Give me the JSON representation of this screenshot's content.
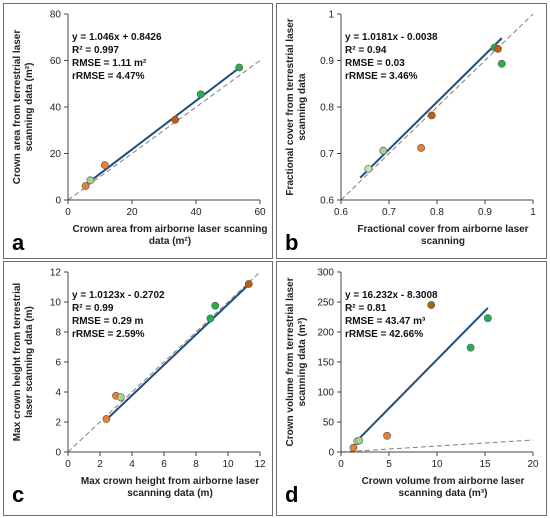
{
  "chart_data": [
    {
      "type": "scatter",
      "panel_letter": "a",
      "xlabel_lines": [
        "Crown area from airborne laser scanning",
        "data (m²)"
      ],
      "ylabel_lines": [
        "Crown area from terrestrial laser",
        "scanning data (m²)"
      ],
      "xlim": [
        0,
        60
      ],
      "ylim": [
        0,
        80
      ],
      "xticks": [
        0,
        20,
        40,
        60
      ],
      "yticks": [
        0,
        20,
        40,
        60,
        80
      ],
      "xtick_labels": [
        "0",
        "20",
        "40",
        "60"
      ],
      "ytick_labels": [
        "0",
        "20",
        "40",
        "60",
        "80"
      ],
      "stats_lines": [
        "y = 1.046x + 0.8426",
        "R² = 0.997",
        "RMSE = 1.11 m²",
        "rRMSE = 4.47%"
      ],
      "points": [
        {
          "x": 5.5,
          "y": 6,
          "color": "#ed7d31"
        },
        {
          "x": 7,
          "y": 8.5,
          "color": "#a9d18e"
        },
        {
          "x": 11.5,
          "y": 15,
          "color": "#ed7d31"
        },
        {
          "x": 33.5,
          "y": 34.5,
          "color": "#c55a11"
        },
        {
          "x": 41.5,
          "y": 45.5,
          "color": "#22b14c"
        },
        {
          "x": 53.5,
          "y": 57,
          "color": "#22b14c"
        }
      ],
      "regression_x": [
        5.5,
        53.5
      ],
      "reference_line": "1:1 dashed",
      "grid": false
    },
    {
      "type": "scatter",
      "panel_letter": "b",
      "xlabel_lines": [
        "Fractional cover from airborne laser",
        "scanning"
      ],
      "ylabel_lines": [
        "Fractional cover from terrestrial laser",
        "scanning data"
      ],
      "xlim": [
        0.6,
        1
      ],
      "ylim": [
        0.6,
        1
      ],
      "xticks": [
        0.6,
        0.7,
        0.8,
        0.9,
        1
      ],
      "yticks": [
        0.6,
        0.7,
        0.8,
        0.9,
        1
      ],
      "xtick_labels": [
        "0.6",
        "0.7",
        "0.8",
        "0.9",
        "1"
      ],
      "ytick_labels": [
        "0.6",
        "0.7",
        "0.8",
        "0.9",
        "1"
      ],
      "stats_lines": [
        "y = 1.0181x - 0.0038",
        "R² = 0.94",
        "RMSE = 0.03",
        "rRMSE = 3.46%"
      ],
      "points": [
        {
          "x": 0.657,
          "y": 0.667,
          "color": "#c5e0b4"
        },
        {
          "x": 0.688,
          "y": 0.706,
          "color": "#a9d18e"
        },
        {
          "x": 0.767,
          "y": 0.712,
          "color": "#ed7d31"
        },
        {
          "x": 0.789,
          "y": 0.782,
          "color": "#c55a11"
        },
        {
          "x": 0.92,
          "y": 0.928,
          "color": "#22b14c"
        },
        {
          "x": 0.927,
          "y": 0.925,
          "color": "#c55a11"
        },
        {
          "x": 0.935,
          "y": 0.893,
          "color": "#22b14c"
        }
      ],
      "regression_x": [
        0.64,
        0.935
      ],
      "reference_line": "1:1 dashed",
      "grid": false
    },
    {
      "type": "scatter",
      "panel_letter": "c",
      "xlabel_lines": [
        "Max crown height from airborne laser",
        "scanning data (m)"
      ],
      "ylabel_lines": [
        "Max crown height  from terrestrial",
        "laser scanning data  (m)"
      ],
      "xlim": [
        0,
        12
      ],
      "ylim": [
        0,
        12
      ],
      "xticks": [
        0,
        2,
        4,
        6,
        8,
        10,
        12
      ],
      "yticks": [
        0,
        2,
        4,
        6,
        8,
        10,
        12
      ],
      "xtick_labels": [
        "0",
        "2",
        "4",
        "6",
        "8",
        "10",
        "12"
      ],
      "ytick_labels": [
        "0",
        "2",
        "4",
        "6",
        "8",
        "10",
        "12"
      ],
      "stats_lines": [
        "y = 1.0123x - 0.2702",
        "R² = 0.99",
        "RMSE = 0.29 m",
        "rRMSE = 2.59%"
      ],
      "points": [
        {
          "x": 2.4,
          "y": 2.2,
          "color": "#ed7d31"
        },
        {
          "x": 3.0,
          "y": 3.75,
          "color": "#ed7d31"
        },
        {
          "x": 3.3,
          "y": 3.65,
          "color": "#a9d18e"
        },
        {
          "x": 8.9,
          "y": 8.9,
          "color": "#22b14c"
        },
        {
          "x": 9.2,
          "y": 9.75,
          "color": "#22b14c"
        },
        {
          "x": 11.3,
          "y": 11.2,
          "color": "#c55a11"
        }
      ],
      "regression_x": [
        2.4,
        11.3
      ],
      "reference_line": "1:1 dashed",
      "grid": false
    },
    {
      "type": "scatter",
      "panel_letter": "d",
      "xlabel_lines": [
        "Crown volume from airborne laser",
        "scanning data (m³)"
      ],
      "ylabel_lines": [
        "Crown volume from terrestrial laser",
        "scanning data (m³)"
      ],
      "xlim": [
        0,
        20
      ],
      "ylim": [
        0,
        300
      ],
      "xticks": [
        0,
        5,
        10,
        15,
        20
      ],
      "yticks": [
        0,
        50,
        100,
        150,
        200,
        250,
        300
      ],
      "xtick_labels": [
        "0",
        "5",
        "10",
        "15",
        "20"
      ],
      "ytick_labels": [
        "0",
        "50",
        "100",
        "150",
        "200",
        "250",
        "300"
      ],
      "stats_lines": [
        "y = 16.232x - 8.3008",
        "R² = 0.81",
        "RMSE = 43.47 m³",
        "rRMSE = 42.66%"
      ],
      "points": [
        {
          "x": 1.3,
          "y": 7,
          "color": "#ed7d31"
        },
        {
          "x": 1.7,
          "y": 18,
          "color": "#c5e0b4"
        },
        {
          "x": 1.9,
          "y": 19,
          "color": "#a9d18e"
        },
        {
          "x": 4.8,
          "y": 27,
          "color": "#ed7d31"
        },
        {
          "x": 9.4,
          "y": 245,
          "color": "#9e6b00"
        },
        {
          "x": 13.5,
          "y": 174,
          "color": "#22b14c"
        },
        {
          "x": 15.3,
          "y": 223,
          "color": "#22b14c"
        }
      ],
      "regression_x": [
        1.6,
        15.3
      ],
      "reference_line": "1:1 dashed",
      "grid": false
    }
  ],
  "colors": {
    "regression_line": "#1f4e79",
    "reference_line": "#7f7f7f",
    "axis": "#444444",
    "marker_stroke": "#555555"
  }
}
